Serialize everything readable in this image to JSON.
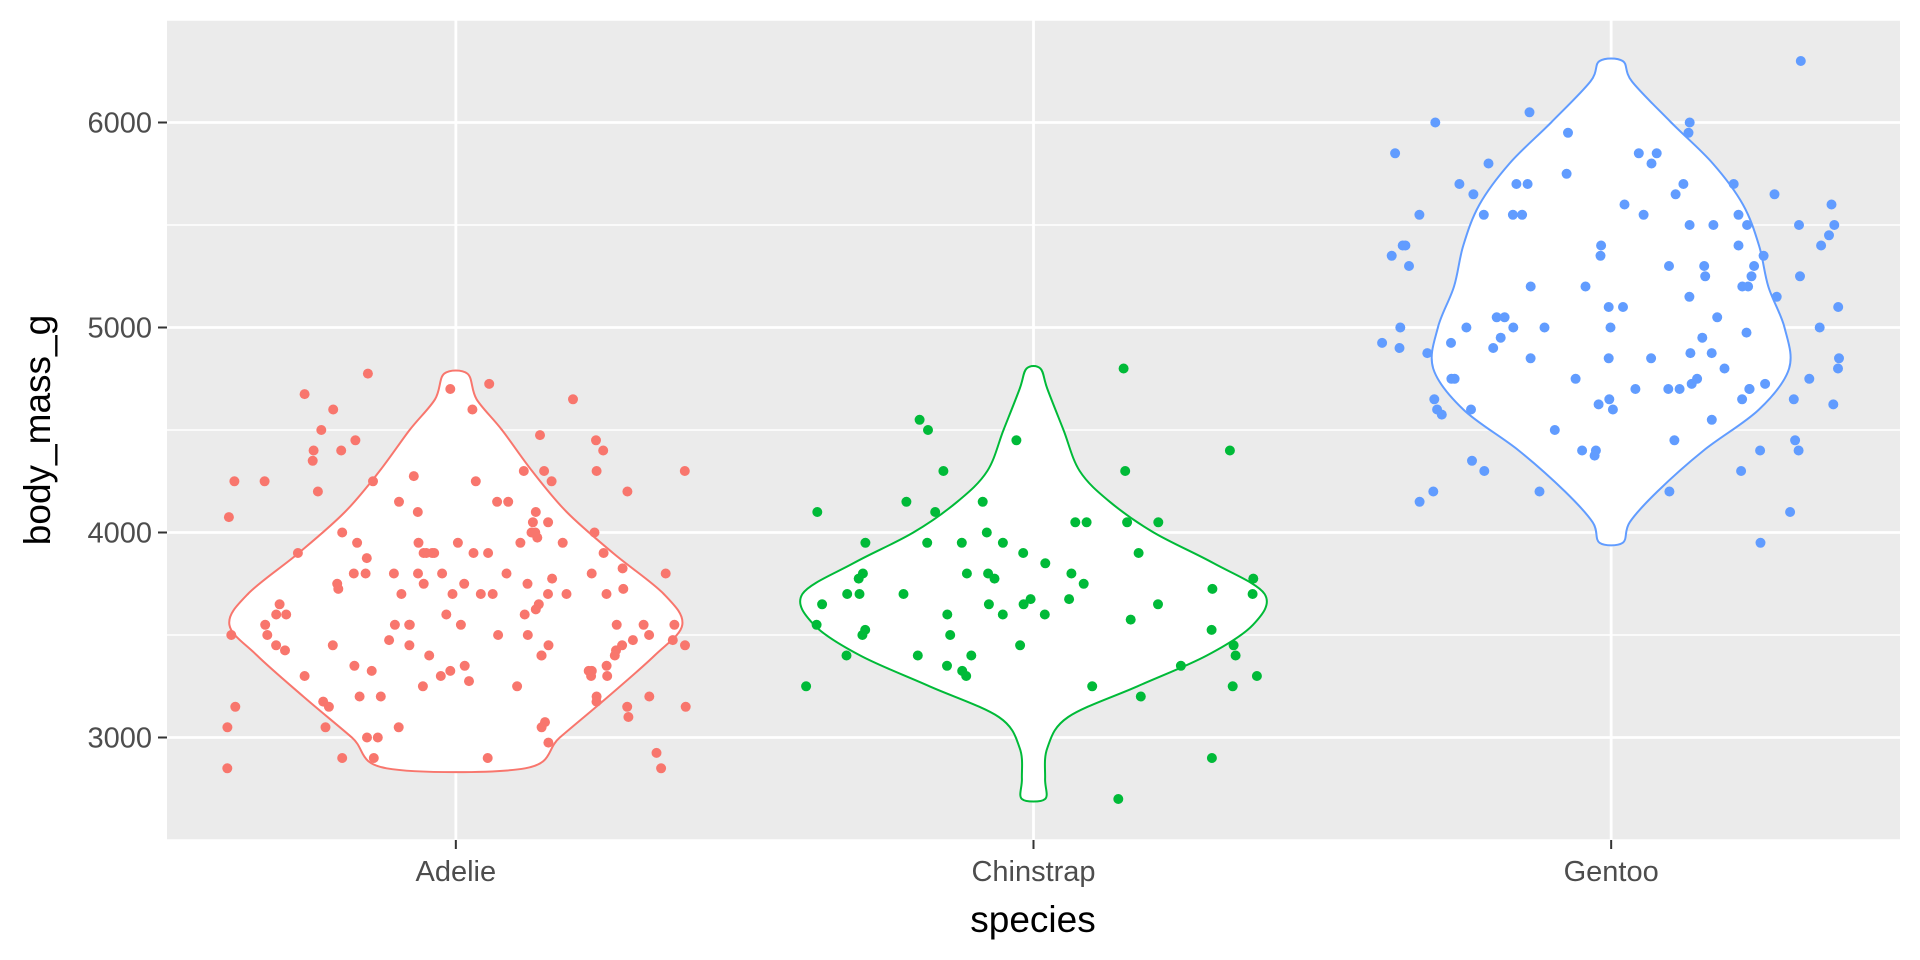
{
  "chart_data": {
    "type": "violin",
    "xlabel": "species",
    "ylabel": "body_mass_g",
    "categories": [
      "Adelie",
      "Chinstrap",
      "Gentoo"
    ],
    "ylim": [
      2500,
      6500
    ],
    "yticks": [
      3000,
      4000,
      5000,
      6000
    ],
    "grid": true,
    "legend": "none",
    "series": [
      {
        "name": "Adelie",
        "color": "#F8766D",
        "range": [
          2850,
          4775
        ],
        "density": [
          [
            2850,
            0.3
          ],
          [
            3000,
            0.45
          ],
          [
            3200,
            0.66
          ],
          [
            3400,
            0.86
          ],
          [
            3550,
            0.98
          ],
          [
            3700,
            0.9
          ],
          [
            3900,
            0.68
          ],
          [
            4100,
            0.48
          ],
          [
            4300,
            0.33
          ],
          [
            4500,
            0.2
          ],
          [
            4650,
            0.09
          ],
          [
            4775,
            0.05
          ]
        ],
        "points": [
          3750,
          3800,
          3250,
          3450,
          3650,
          3625,
          4675,
          3475,
          4250,
          3300,
          3700,
          3200,
          3800,
          4400,
          3700,
          3450,
          4500,
          3325,
          4200,
          3400,
          3600,
          3800,
          3950,
          3800,
          3800,
          3550,
          3200,
          3150,
          3950,
          3250,
          3900,
          3300,
          3900,
          3325,
          4150,
          3950,
          3550,
          3300,
          4650,
          3150,
          3900,
          3100,
          4400,
          3000,
          4600,
          3425,
          2975,
          3450,
          4150,
          3500,
          4300,
          3450,
          4050,
          2900,
          3700,
          3550,
          3800,
          2850,
          3750,
          3150,
          4400,
          3600,
          4050,
          2850,
          3950,
          3350,
          4100,
          3050,
          4450,
          3600,
          3900,
          3550,
          4150,
          3700,
          4250,
          3700,
          3900,
          3550,
          4000,
          3200,
          4700,
          3800,
          4200,
          3350,
          3550,
          3800,
          3500,
          3950,
          3600,
          3550,
          4300,
          3400,
          4450,
          3300,
          4300,
          3700,
          4350,
          2900,
          4100,
          3725,
          4725,
          3075,
          4250,
          2925,
          3550,
          3750,
          3900,
          3175,
          4775,
          3825,
          4600,
          3200,
          4275,
          3900,
          4075,
          2900,
          3775,
          3350,
          3325,
          3150,
          3500,
          3450,
          3875,
          3050,
          4000,
          3275,
          4300,
          3050,
          4000,
          3325,
          3500,
          3500,
          4475,
          3425,
          3900,
          3175,
          3975,
          3400,
          4250,
          3400,
          3475,
          3050,
          3725,
          3000,
          3650,
          4250,
          3475,
          3450,
          3750,
          3700,
          4000
        ]
      },
      {
        "name": "Chinstrap",
        "color": "#00BA38",
        "range": [
          2700,
          4800
        ],
        "density": [
          [
            2700,
            0.05
          ],
          [
            2800,
            0.05
          ],
          [
            2950,
            0.06
          ],
          [
            3100,
            0.15
          ],
          [
            3250,
            0.45
          ],
          [
            3400,
            0.75
          ],
          [
            3550,
            0.95
          ],
          [
            3700,
            1.0
          ],
          [
            3850,
            0.78
          ],
          [
            4000,
            0.52
          ],
          [
            4150,
            0.33
          ],
          [
            4300,
            0.2
          ],
          [
            4500,
            0.13
          ],
          [
            4700,
            0.06
          ],
          [
            4800,
            0.03
          ]
        ],
        "points": [
          3500,
          3900,
          3650,
          3525,
          3725,
          3950,
          3250,
          3750,
          4150,
          3700,
          3800,
          3775,
          3700,
          4050,
          3575,
          4050,
          3300,
          3700,
          3450,
          4400,
          3600,
          3400,
          2900,
          3800,
          3300,
          4150,
          3400,
          3800,
          3700,
          4550,
          3200,
          4300,
          3350,
          4100,
          3600,
          3900,
          3850,
          4800,
          2700,
          4500,
          3950,
          3650,
          3550,
          3500,
          3675,
          4450,
          3400,
          4300,
          3250,
          3675,
          3325,
          3950,
          3600,
          4050,
          3350,
          3450,
          3250,
          4050,
          3800,
          3525,
          3950,
          3650,
          3650,
          4000,
          3400,
          3775,
          4100,
          3775
        ]
      },
      {
        "name": "Gentoo",
        "color": "#619CFF",
        "range": [
          3950,
          6300
        ],
        "density": [
          [
            3950,
            0.05
          ],
          [
            4050,
            0.08
          ],
          [
            4200,
            0.2
          ],
          [
            4400,
            0.4
          ],
          [
            4600,
            0.64
          ],
          [
            4800,
            0.77
          ],
          [
            5000,
            0.75
          ],
          [
            5200,
            0.68
          ],
          [
            5400,
            0.64
          ],
          [
            5600,
            0.57
          ],
          [
            5800,
            0.44
          ],
          [
            6000,
            0.26
          ],
          [
            6200,
            0.09
          ],
          [
            6300,
            0.05
          ]
        ],
        "points": [
          4500,
          5700,
          4450,
          5700,
          5400,
          4550,
          4800,
          5200,
          4400,
          5150,
          4650,
          5550,
          4650,
          5850,
          4200,
          5850,
          4150,
          6300,
          4800,
          5350,
          5700,
          5000,
          4400,
          5050,
          5000,
          5100,
          4100,
          5650,
          4600,
          5550,
          5250,
          4700,
          5050,
          6050,
          5150,
          5400,
          4950,
          5250,
          4350,
          5350,
          3950,
          5700,
          4300,
          4750,
          5550,
          4900,
          4200,
          5400,
          5100,
          5300,
          4850,
          5300,
          4400,
          5000,
          4900,
          5050,
          4300,
          5000,
          4450,
          5550,
          4200,
          5300,
          4400,
          5650,
          4700,
          5700,
          4650,
          5800,
          4700,
          5550,
          4750,
          5000,
          5100,
          5200,
          4700,
          5800,
          4600,
          6000,
          4750,
          5950,
          4625,
          5450,
          4725,
          5350,
          4750,
          5600,
          4600,
          5300,
          4875,
          5550,
          4950,
          5400,
          4750,
          5650,
          4850,
          5200,
          4925,
          4875,
          4625,
          5250,
          4850,
          5600,
          4975,
          5500,
          4725,
          5500,
          4700,
          5500,
          4575,
          5500,
          5000,
          5950,
          4650,
          5500,
          4375,
          5850,
          4875,
          6000,
          4925,
          4850,
          5750,
          5200,
          5400
        ]
      }
    ]
  }
}
